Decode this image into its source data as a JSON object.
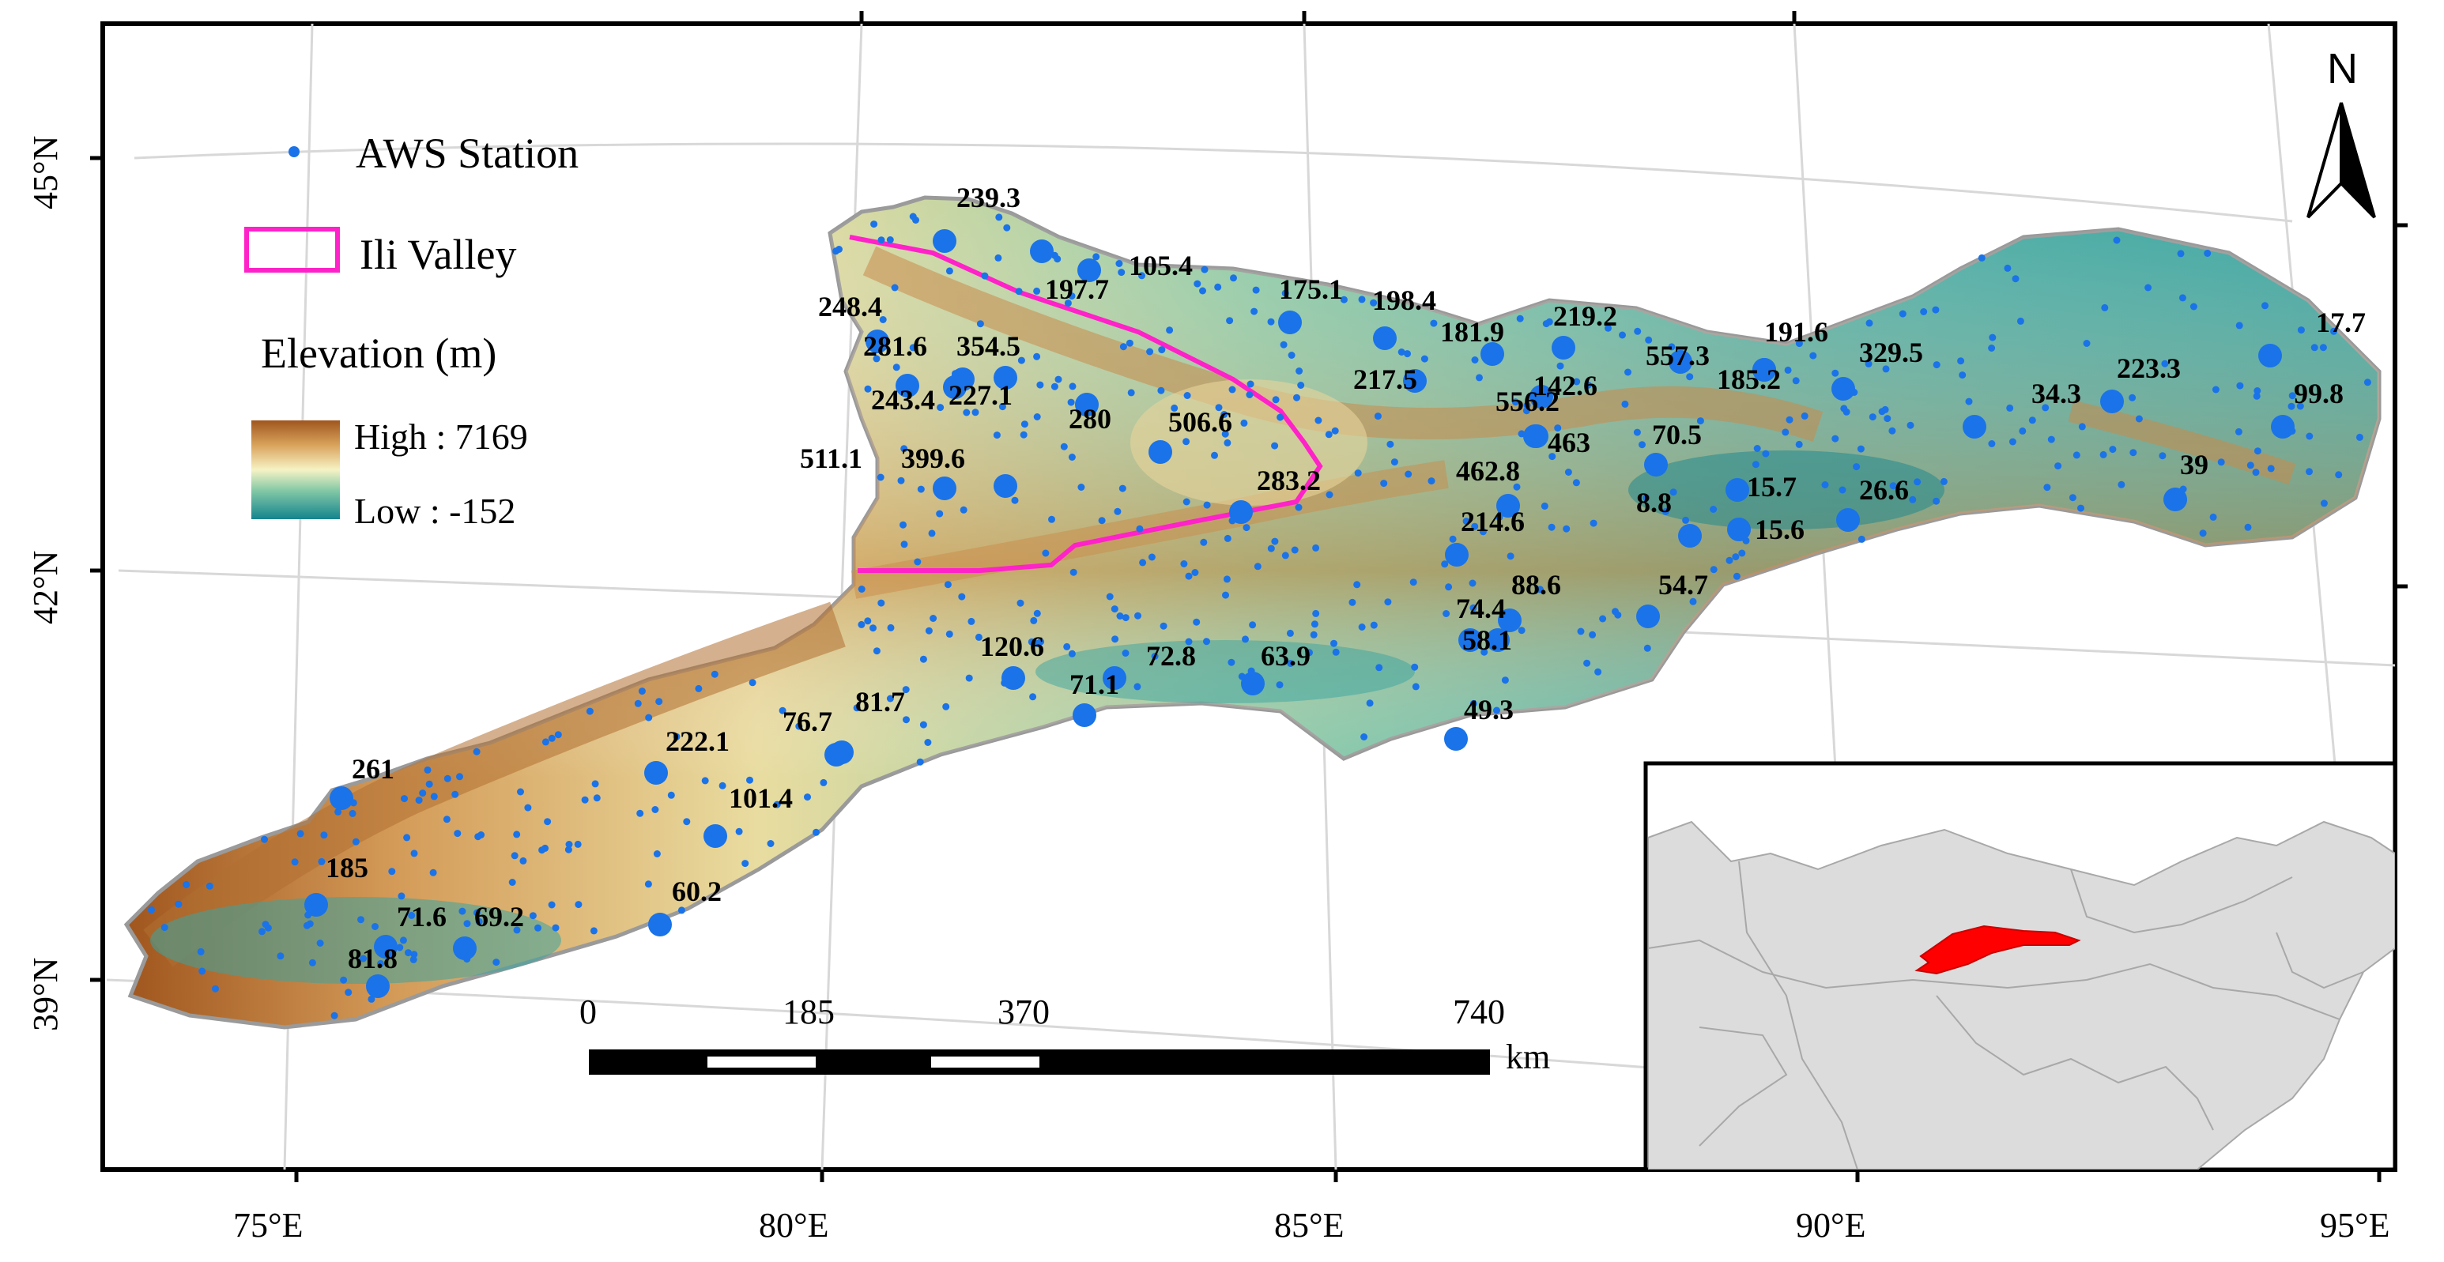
{
  "legend": {
    "station_label": "AWS Station",
    "valley_label": "Ili Valley",
    "elevation_title": "Elevation (m)",
    "high_label": "High : 7169",
    "low_label": "Low : -152"
  },
  "north_arrow": {
    "letter": "N"
  },
  "lon_labels": [
    "75°E",
    "80°E",
    "85°E",
    "90°E",
    "95°E"
  ],
  "lat_labels": [
    "45°N",
    "42°N",
    "39°N"
  ],
  "scale_bar": {
    "ticks": [
      "0",
      "185",
      "370",
      "740"
    ],
    "unit": "km"
  },
  "precip_labels": [
    "239.3",
    "105.4",
    "197.7",
    "175.1",
    "198.4",
    "248.4",
    "281.6",
    "354.5",
    "181.9",
    "219.2",
    "191.6",
    "329.5",
    "557.3",
    "185.2",
    "217.5",
    "142.6",
    "556.2",
    "243.4",
    "227.1",
    "280",
    "506.6",
    "463",
    "70.5",
    "34.3",
    "223.3",
    "17.7",
    "99.8",
    "511.1",
    "399.6",
    "283.2",
    "462.8",
    "39",
    "15.7",
    "26.6",
    "8.8",
    "15.6",
    "214.6",
    "88.6",
    "74.4",
    "54.7",
    "58.1",
    "120.6",
    "72.8",
    "63.9",
    "71.1",
    "81.7",
    "76.7",
    "49.3",
    "222.1",
    "261",
    "101.4",
    "185",
    "71.6",
    "69.2",
    "60.2",
    "81.8"
  ],
  "colors": {
    "station": "#1a73e8",
    "valley": "#ff22c8",
    "high": "#a0561e",
    "low": "#19848c",
    "inset_region": "#ff0000"
  }
}
